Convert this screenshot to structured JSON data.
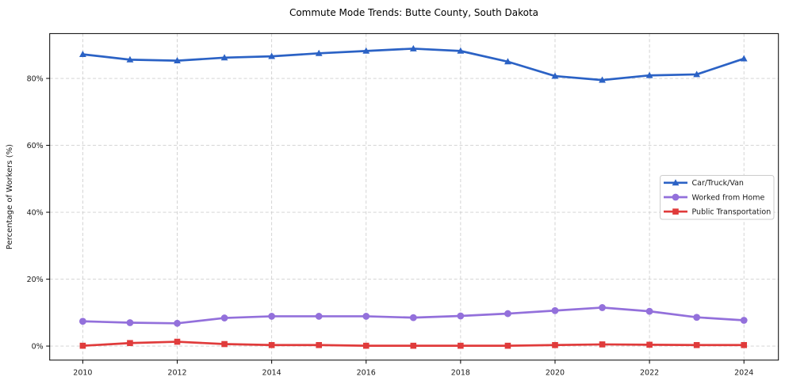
{
  "figure": {
    "background": "#ffffff",
    "text_color": "#1a1a1a",
    "grid_color": "#cfcfcf",
    "spine_color": "#000000",
    "legend_border_color": "#cccccc"
  },
  "chart_data": {
    "type": "line",
    "title": "Commute Mode Trends: Butte County, South Dakota",
    "xlabel": "",
    "ylabel": "Percentage of Workers (%)",
    "x": [
      2010,
      2011,
      2012,
      2013,
      2014,
      2015,
      2016,
      2017,
      2018,
      2019,
      2020,
      2021,
      2022,
      2023,
      2024
    ],
    "series": [
      {
        "name": "Car/Truck/Van",
        "color": "#2b62c5",
        "marker": "triangle",
        "values": [
          87.2,
          85.6,
          85.3,
          86.2,
          86.6,
          87.5,
          88.2,
          88.9,
          88.2,
          85.0,
          80.7,
          79.5,
          80.9,
          81.2,
          85.9
        ]
      },
      {
        "name": "Worked from Home",
        "color": "#9370db",
        "marker": "circle",
        "values": [
          7.4,
          7.0,
          6.8,
          8.4,
          8.9,
          8.9,
          8.9,
          8.5,
          9.0,
          9.7,
          10.6,
          11.5,
          10.4,
          8.6,
          7.7
        ]
      },
      {
        "name": "Public Transportation",
        "color": "#e03b3b",
        "marker": "square",
        "values": [
          0.1,
          0.9,
          1.3,
          0.6,
          0.3,
          0.3,
          0.1,
          0.1,
          0.1,
          0.1,
          0.3,
          0.5,
          0.4,
          0.3,
          0.3
        ]
      }
    ],
    "xticks": [
      2010,
      2012,
      2014,
      2016,
      2018,
      2020,
      2022,
      2024
    ],
    "xtick_labels": [
      "2010",
      "2012",
      "2014",
      "2016",
      "2018",
      "2020",
      "2022",
      "2024"
    ],
    "yticks": [
      0,
      20,
      40,
      60,
      80
    ],
    "ytick_labels": [
      "0%",
      "20%",
      "40%",
      "60%",
      "80%"
    ],
    "xlim": [
      2009.3,
      2024.73
    ],
    "ylim": [
      -4.2,
      93.4
    ],
    "grid": true,
    "grid_style": "dashed",
    "legend_position": "center right"
  }
}
